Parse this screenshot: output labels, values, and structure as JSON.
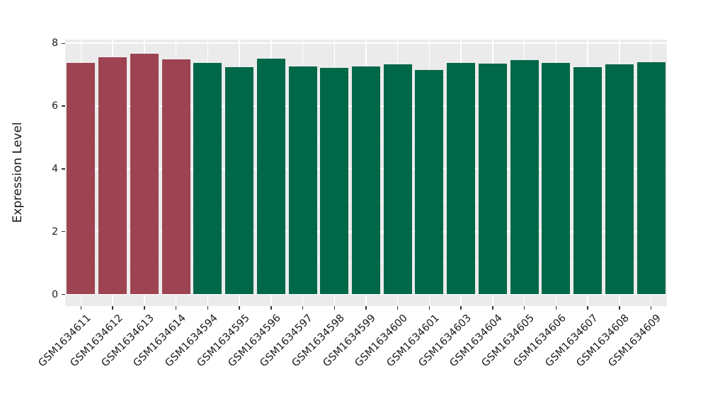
{
  "chart_data": {
    "type": "bar",
    "title": "",
    "xlabel": "",
    "ylabel": "Expression Level",
    "categories": [
      "GSM1634611",
      "GSM1634612",
      "GSM1634613",
      "GSM1634614",
      "GSM1634594",
      "GSM1634595",
      "GSM1634596",
      "GSM1634597",
      "GSM1634598",
      "GSM1634599",
      "GSM1634600",
      "GSM1634601",
      "GSM1634603",
      "GSM1634604",
      "GSM1634605",
      "GSM1634606",
      "GSM1634607",
      "GSM1634608",
      "GSM1634609"
    ],
    "values": [
      7.37,
      7.55,
      7.68,
      7.49,
      7.37,
      7.25,
      7.52,
      7.26,
      7.21,
      7.26,
      7.32,
      7.14,
      7.38,
      7.35,
      7.46,
      7.37,
      7.25,
      7.32,
      7.39
    ],
    "bar_colors": [
      "#9E4351",
      "#9E4351",
      "#9E4351",
      "#9E4351",
      "#006748",
      "#006748",
      "#006748",
      "#006748",
      "#006748",
      "#006748",
      "#006748",
      "#006748",
      "#006748",
      "#006748",
      "#006748",
      "#006748",
      "#006748",
      "#006748",
      "#006748"
    ],
    "palette": {
      "maroon_group": "#9E4351",
      "green_group": "#006748"
    },
    "yticks": [
      0,
      2,
      4,
      6,
      8
    ],
    "yticks_minor": [
      1,
      3,
      5,
      7
    ],
    "ylim": [
      -0.37,
      8.12
    ],
    "grid": true,
    "legend_position": "none",
    "panel_bg": "#EBEBEB",
    "grid_color": "#FFFFFF",
    "tick_color": "#333333",
    "text_color": "#1a1a1a",
    "background": "#FFFFFF"
  }
}
